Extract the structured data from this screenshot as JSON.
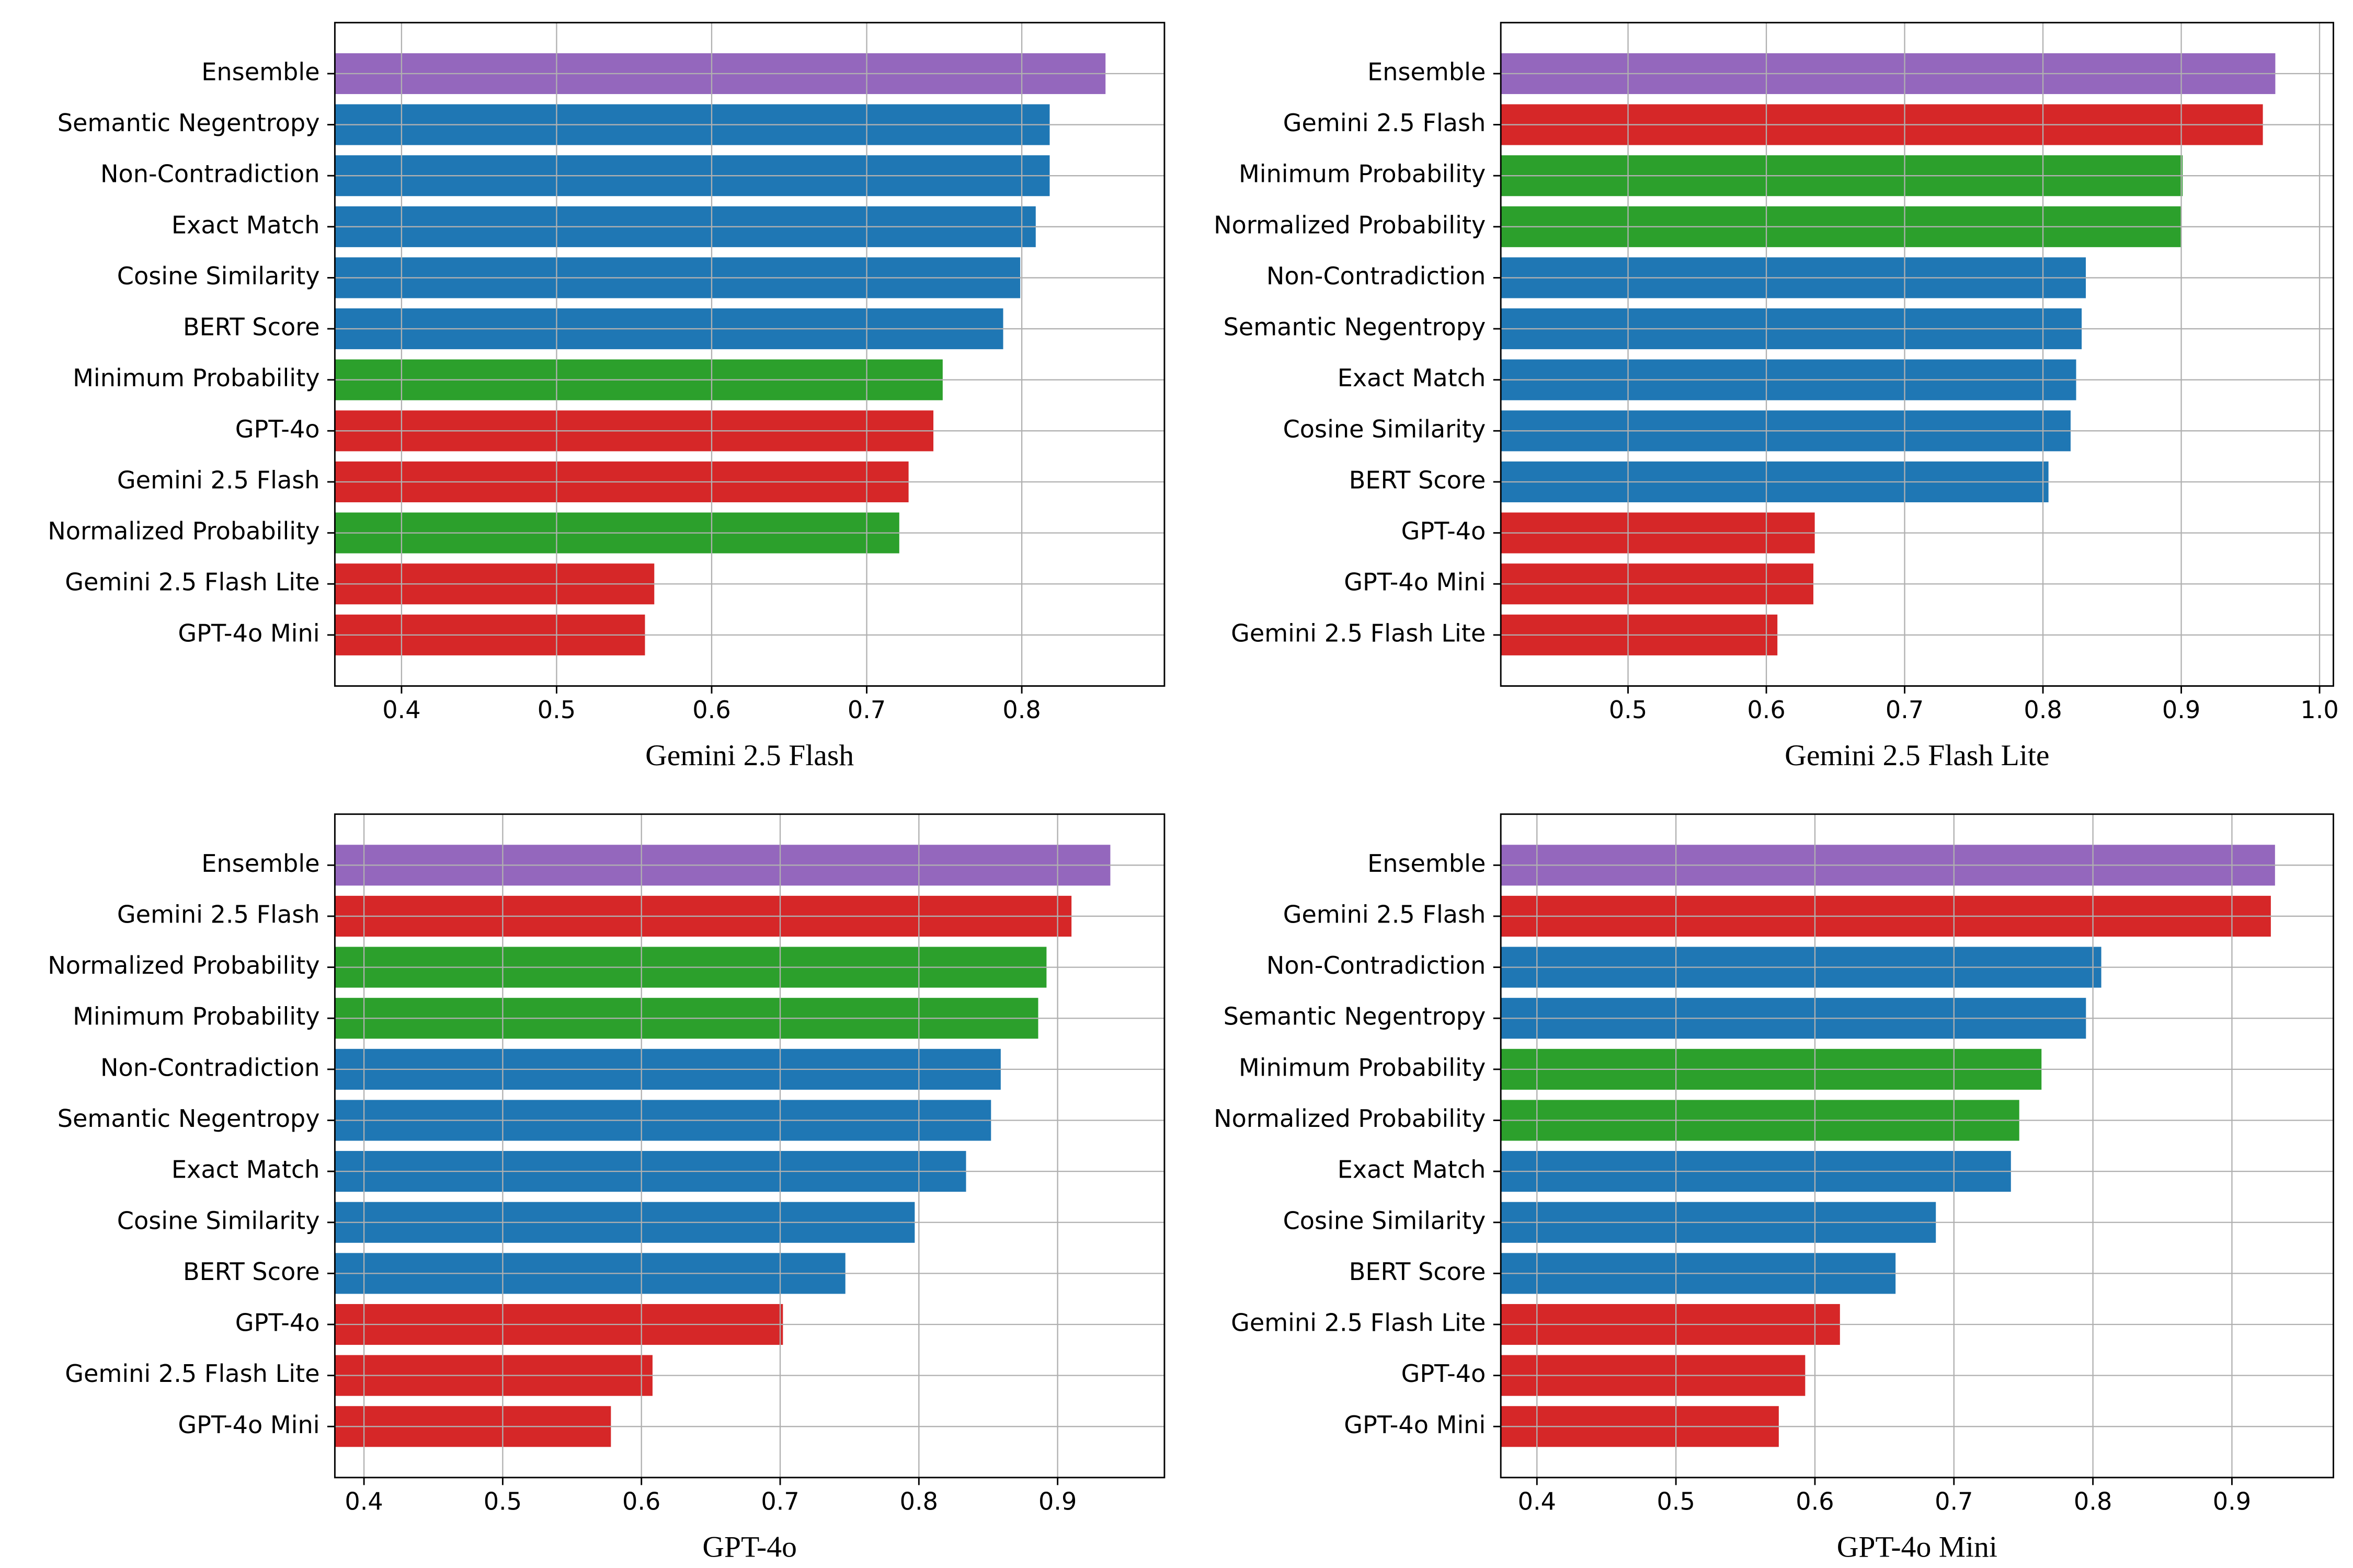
{
  "chart_data": [
    {
      "type": "barh",
      "title": "Gemini 2.5 Flash",
      "grid": true,
      "categories": [
        "Ensemble",
        "Semantic Negentropy",
        "Non-Contradiction",
        "Exact Match",
        "Cosine Similarity",
        "BERT Score",
        "Minimum Probability",
        "GPT-4o",
        "Gemini 2.5 Flash",
        "Normalized Probability",
        "Gemini 2.5 Flash Lite",
        "GPT-4o Mini"
      ],
      "values": [
        0.854,
        0.818,
        0.818,
        0.809,
        0.799,
        0.788,
        0.749,
        0.743,
        0.727,
        0.721,
        0.563,
        0.557
      ],
      "colors": [
        "#9467bd",
        "#1f77b4",
        "#1f77b4",
        "#1f77b4",
        "#1f77b4",
        "#1f77b4",
        "#2ca02c",
        "#d62728",
        "#d62728",
        "#2ca02c",
        "#d62728",
        "#d62728"
      ],
      "xlim": [
        0.357,
        0.892
      ],
      "xticks": [
        0.4,
        0.5,
        0.6,
        0.7,
        0.8
      ]
    },
    {
      "type": "barh",
      "title": "Gemini 2.5 Flash Lite",
      "grid": true,
      "categories": [
        "Ensemble",
        "Gemini 2.5 Flash",
        "Minimum Probability",
        "Normalized Probability",
        "Non-Contradiction",
        "Semantic Negentropy",
        "Exact Match",
        "Cosine Similarity",
        "BERT Score",
        "GPT-4o",
        "GPT-4o Mini",
        "Gemini 2.5 Flash Lite"
      ],
      "values": [
        0.968,
        0.959,
        0.901,
        0.9,
        0.831,
        0.828,
        0.824,
        0.82,
        0.804,
        0.635,
        0.634,
        0.608
      ],
      "colors": [
        "#9467bd",
        "#d62728",
        "#2ca02c",
        "#2ca02c",
        "#1f77b4",
        "#1f77b4",
        "#1f77b4",
        "#1f77b4",
        "#1f77b4",
        "#d62728",
        "#d62728",
        "#d62728"
      ],
      "xlim": [
        0.408,
        1.01
      ],
      "xticks": [
        0.5,
        0.6,
        0.7,
        0.8,
        0.9,
        {
          "value": 1.0,
          "label": "1.0"
        }
      ]
    },
    {
      "type": "barh",
      "title": "GPT-4o",
      "grid": true,
      "categories": [
        "Ensemble",
        "Gemini 2.5 Flash",
        "Normalized Probability",
        "Minimum Probability",
        "Non-Contradiction",
        "Semantic Negentropy",
        "Exact Match",
        "Cosine Similarity",
        "BERT Score",
        "GPT-4o",
        "Gemini 2.5 Flash Lite",
        "GPT-4o Mini"
      ],
      "values": [
        0.938,
        0.91,
        0.892,
        0.886,
        0.859,
        0.852,
        0.834,
        0.797,
        0.747,
        0.702,
        0.608,
        0.578
      ],
      "colors": [
        "#9467bd",
        "#d62728",
        "#2ca02c",
        "#2ca02c",
        "#1f77b4",
        "#1f77b4",
        "#1f77b4",
        "#1f77b4",
        "#1f77b4",
        "#d62728",
        "#d62728",
        "#d62728"
      ],
      "xlim": [
        0.379,
        0.977
      ],
      "xticks": [
        0.4,
        0.5,
        0.6,
        0.7,
        0.8,
        0.9
      ]
    },
    {
      "type": "barh",
      "title": "GPT-4o Mini",
      "grid": true,
      "categories": [
        "Ensemble",
        "Gemini 2.5 Flash",
        "Non-Contradiction",
        "Semantic Negentropy",
        "Minimum Probability",
        "Normalized Probability",
        "Exact Match",
        "Cosine Similarity",
        "BERT Score",
        "Gemini 2.5 Flash Lite",
        "GPT-4o",
        "GPT-4o Mini"
      ],
      "values": [
        0.931,
        0.928,
        0.806,
        0.795,
        0.763,
        0.747,
        0.741,
        0.687,
        0.658,
        0.618,
        0.593,
        0.574
      ],
      "colors": [
        "#9467bd",
        "#d62728",
        "#1f77b4",
        "#1f77b4",
        "#2ca02c",
        "#2ca02c",
        "#1f77b4",
        "#1f77b4",
        "#1f77b4",
        "#d62728",
        "#d62728",
        "#d62728"
      ],
      "xlim": [
        0.374,
        0.973
      ],
      "xticks": [
        0.4,
        0.5,
        0.6,
        0.7,
        0.8,
        0.9
      ]
    }
  ]
}
